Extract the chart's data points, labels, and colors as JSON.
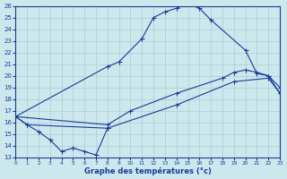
{
  "xlabel": "Graphe des températures (°c)",
  "bg_color": "#cce8ec",
  "grid_color": "#aacdd4",
  "line_color": "#1a3a9a",
  "ylim": [
    13,
    26
  ],
  "xlim": [
    0,
    23
  ],
  "yticks": [
    13,
    14,
    15,
    16,
    17,
    18,
    19,
    20,
    21,
    22,
    23,
    24,
    25,
    26
  ],
  "xticks": [
    0,
    1,
    2,
    3,
    4,
    5,
    6,
    7,
    8,
    9,
    10,
    11,
    12,
    13,
    14,
    15,
    16,
    17,
    18,
    19,
    20,
    21,
    22,
    23
  ],
  "curve_peak_x": [
    0,
    8,
    9,
    11,
    12,
    13,
    14,
    15,
    16,
    17,
    20,
    21,
    22,
    23
  ],
  "curve_peak_y": [
    16.5,
    20.8,
    21.2,
    23.2,
    25.0,
    25.5,
    25.8,
    26.2,
    25.8,
    24.8,
    22.2,
    20.2,
    20.0,
    19.0
  ],
  "curve_mid1_x": [
    0,
    8,
    10,
    14,
    18,
    19,
    20,
    21,
    22,
    23
  ],
  "curve_mid1_y": [
    16.5,
    15.8,
    17.0,
    18.5,
    19.8,
    20.3,
    20.5,
    20.3,
    20.0,
    18.5
  ],
  "curve_mid2_x": [
    0,
    1,
    8,
    14,
    19,
    22,
    23
  ],
  "curve_mid2_y": [
    16.5,
    15.8,
    15.5,
    17.5,
    19.5,
    19.8,
    18.5
  ],
  "curve_min_x": [
    0,
    1,
    2,
    3,
    4,
    5,
    6,
    7,
    8
  ],
  "curve_min_y": [
    16.5,
    15.8,
    15.2,
    14.5,
    13.5,
    13.8,
    13.5,
    13.2,
    15.5
  ]
}
